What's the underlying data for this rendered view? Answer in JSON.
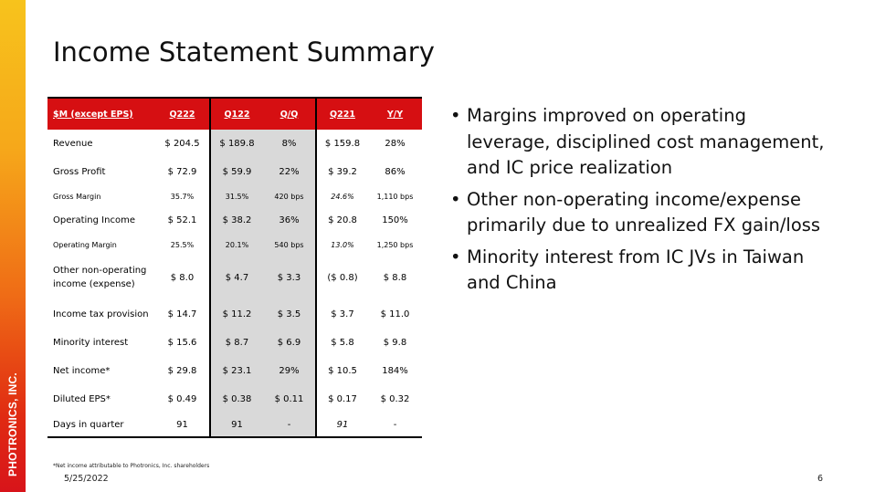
{
  "brand": {
    "side_label": "PHOTRONICS, INC."
  },
  "title": "Income Statement Summary",
  "table": {
    "headers": [
      "$M (except EPS)",
      "Q222",
      "Q122",
      "Q/Q",
      "Q221",
      "Y/Y"
    ],
    "rows": [
      {
        "label": "Revenue",
        "cells": [
          "$ 204.5",
          "$ 189.8",
          "8%",
          "$ 159.8",
          "28%"
        ]
      },
      {
        "label": "Gross Profit",
        "cells": [
          "$ 72.9",
          "$ 59.9",
          "22%",
          "$ 39.2",
          "86%"
        ]
      },
      {
        "label": "Gross Margin",
        "cells": [
          "35.7%",
          "31.5%",
          "420 bps",
          "24.6%",
          "1,110 bps"
        ]
      },
      {
        "label": "Operating Income",
        "cells": [
          "$ 52.1",
          "$ 38.2",
          "36%",
          "$ 20.8",
          "150%"
        ]
      },
      {
        "label": "Operating Margin",
        "cells": [
          "25.5%",
          "20.1%",
          "540 bps",
          "13.0%",
          "1,250 bps"
        ]
      },
      {
        "label": "Other non-operating income (expense)",
        "cells": [
          "$ 8.0",
          "$ 4.7",
          "$ 3.3",
          "($ 0.8)",
          "$ 8.8"
        ]
      },
      {
        "label": "Income tax provision",
        "cells": [
          "$ 14.7",
          "$ 11.2",
          "$ 3.5",
          "$ 3.7",
          "$ 11.0"
        ]
      },
      {
        "label": "Minority interest",
        "cells": [
          "$ 15.6",
          "$ 8.7",
          "$ 6.9",
          "$ 5.8",
          "$ 9.8"
        ]
      },
      {
        "label": "Net income*",
        "cells": [
          "$ 29.8",
          "$ 23.1",
          "29%",
          "$ 10.5",
          "184%"
        ]
      },
      {
        "label": "Diluted EPS*",
        "cells": [
          "$ 0.49",
          "$ 0.38",
          "$ 0.11",
          "$ 0.17",
          "$ 0.32"
        ]
      },
      {
        "label": "Days in quarter",
        "cells": [
          "91",
          "91",
          "-",
          "91",
          "-"
        ]
      }
    ]
  },
  "footnote": "*Net income attributable to Photronics, Inc. shareholders",
  "bullets": [
    "Margins improved on operating leverage, disciplined cost management, and IC price realization",
    "Other non-operating income/expense primarily due to unrealized FX gain/loss",
    "Minority interest from IC JVs in Taiwan and China"
  ],
  "footer": {
    "date": "5/25/2022",
    "page": "6"
  },
  "colors": {
    "header_red": "#d60f12",
    "shade_gray": "#d9d9d9"
  }
}
